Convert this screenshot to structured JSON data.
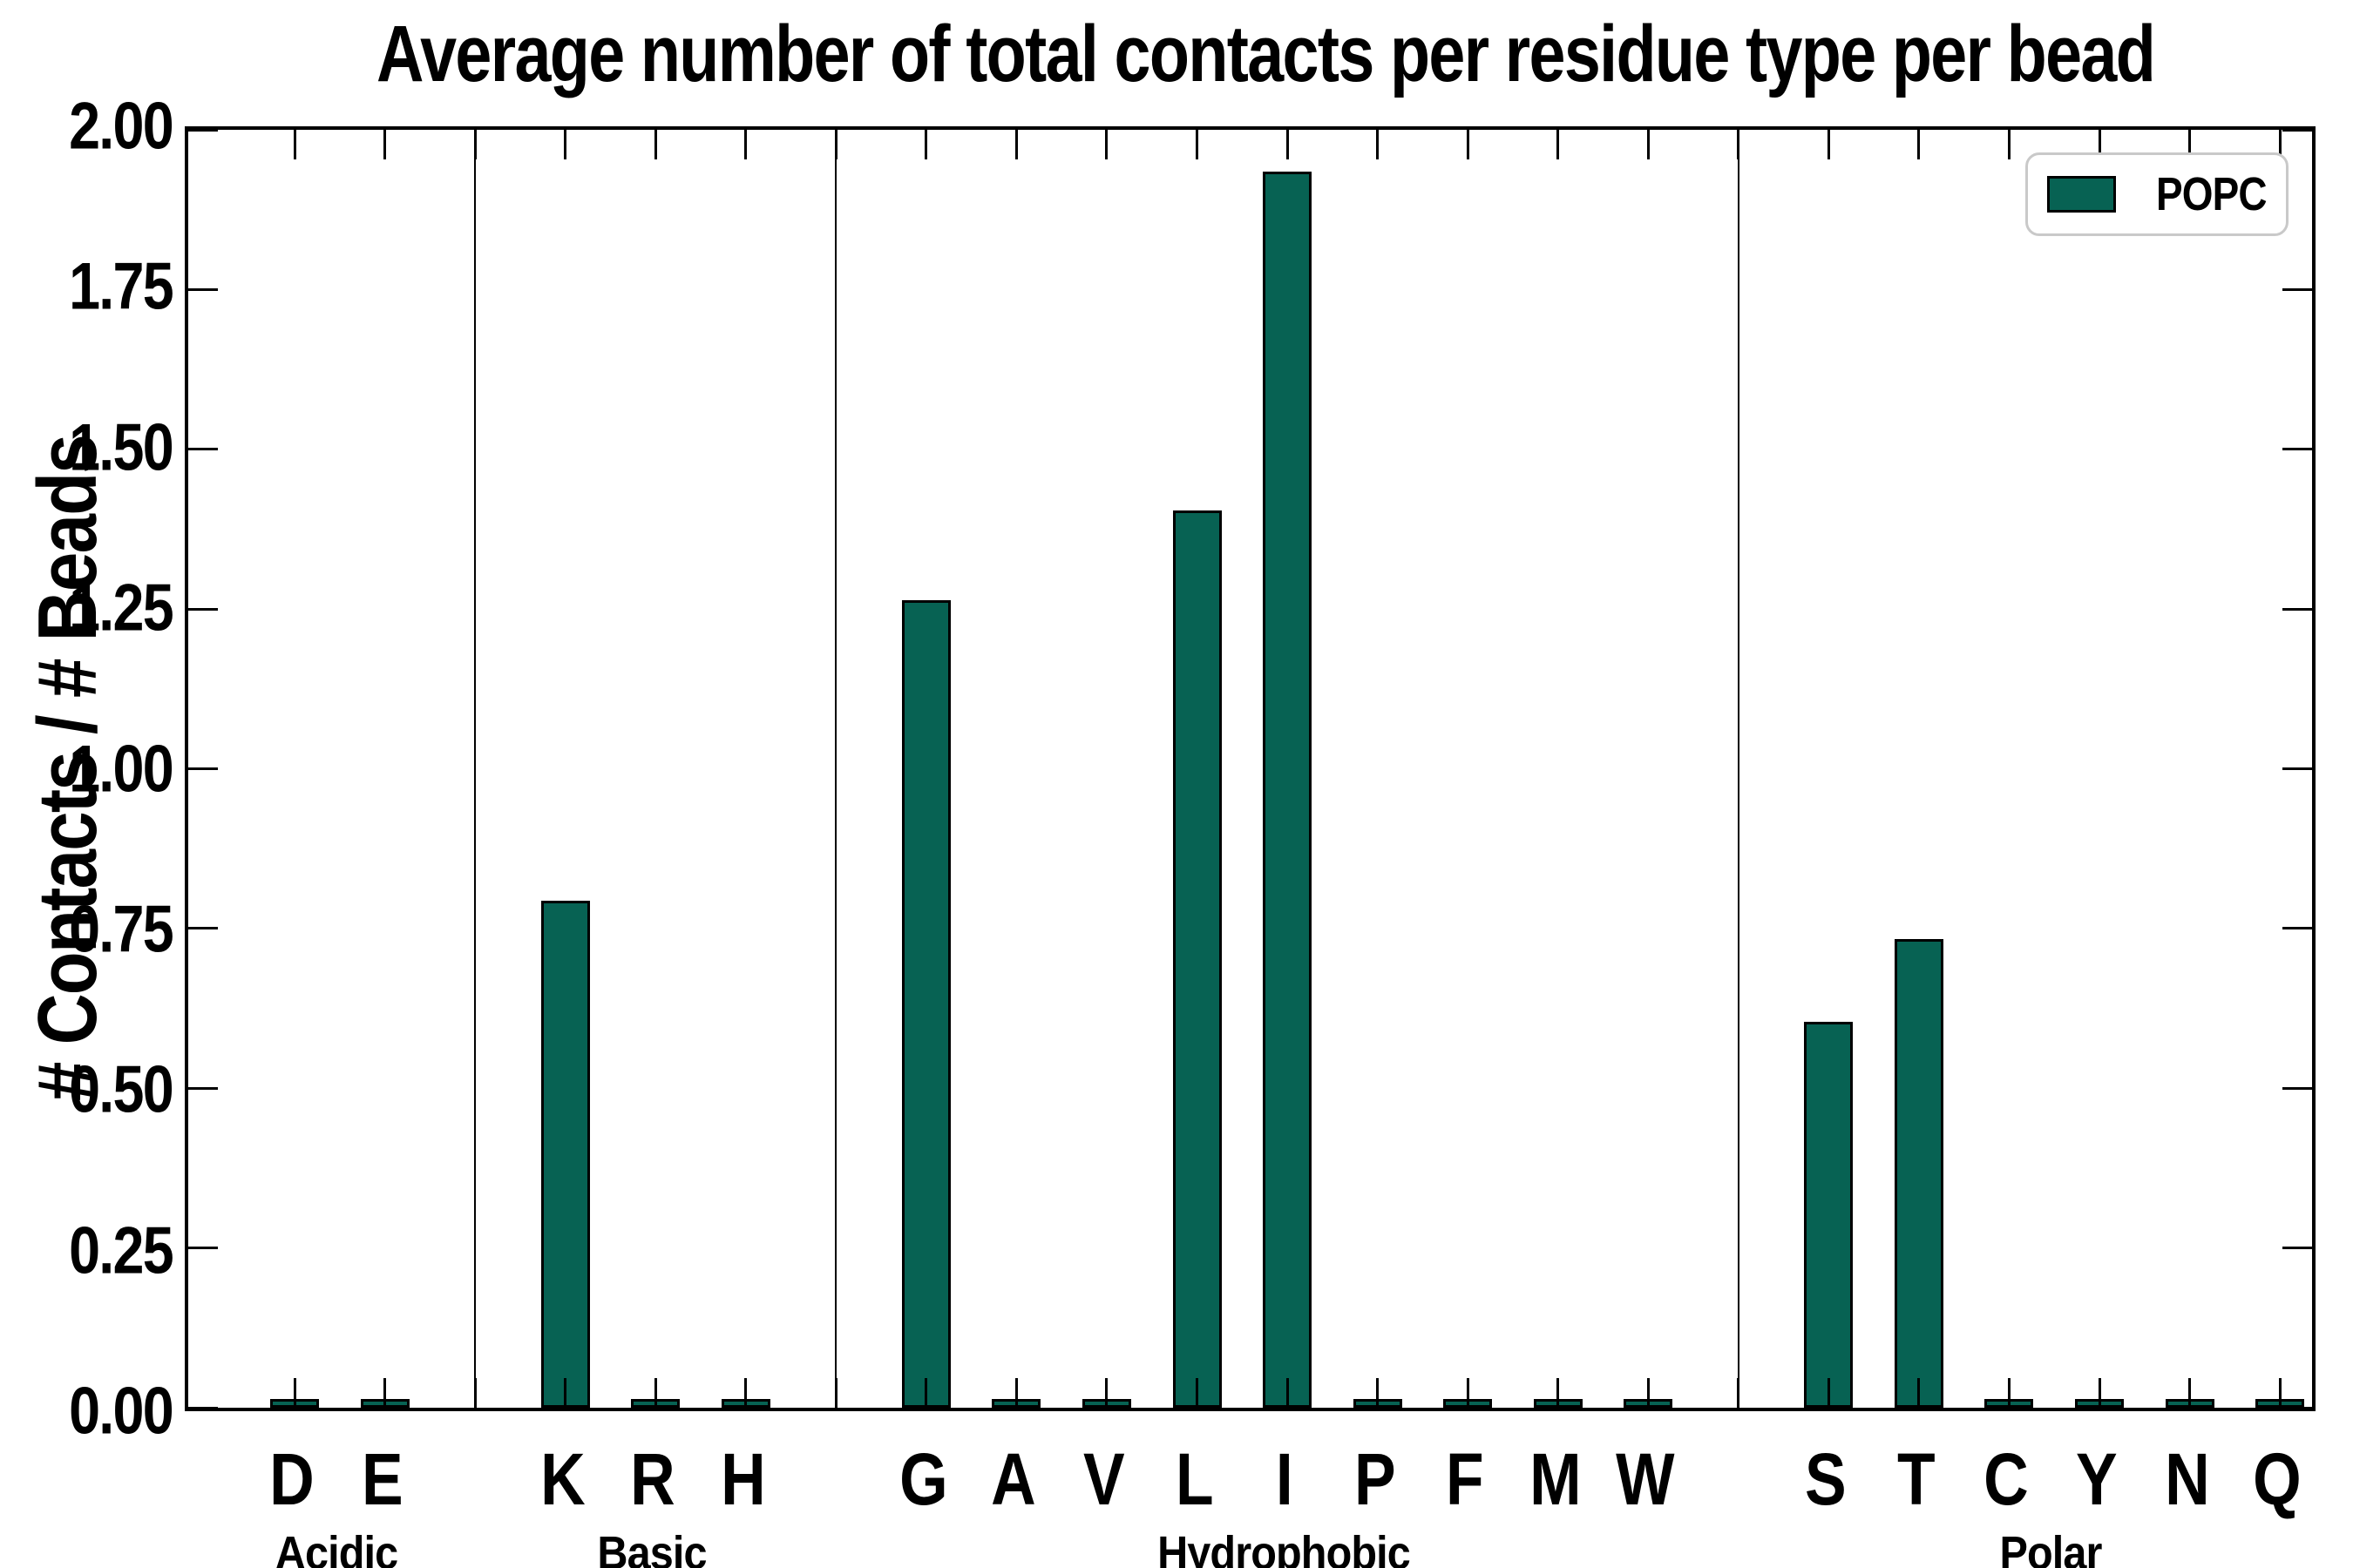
{
  "chart_data": {
    "type": "bar",
    "title": "Average number of total contacts per residue type per bead",
    "ylabel": "# Contacts / # Beads",
    "ylim": [
      0.0,
      2.0
    ],
    "ytick_step": 0.25,
    "ytick_labels": [
      "2.00",
      "1.75",
      "1.50",
      "1.25",
      "1.00",
      "0.75",
      "0.50",
      "0.25",
      "0.00"
    ],
    "grid": "off",
    "legend": {
      "label": "POPC",
      "position": "upper right"
    },
    "bar_color": "#076253",
    "bar_edge_color": "#000000",
    "groups": [
      {
        "label": "Acidic",
        "residues": [
          "D",
          "E"
        ]
      },
      {
        "label": "Basic",
        "residues": [
          "K",
          "R",
          "H"
        ]
      },
      {
        "label": "Hydrophobic",
        "residues": [
          "G",
          "A",
          "V",
          "L",
          "I",
          "P",
          "F",
          "M",
          "W"
        ]
      },
      {
        "label": "Polar",
        "residues": [
          "S",
          "T",
          "C",
          "Y",
          "N",
          "Q"
        ]
      }
    ],
    "values": {
      "D": 0.01,
      "E": 0.01,
      "K": 0.79,
      "R": 0.01,
      "H": 0.01,
      "G": 1.26,
      "A": 0.01,
      "V": 0.01,
      "L": 1.4,
      "I": 1.93,
      "P": 0.01,
      "F": 0.01,
      "M": 0.01,
      "W": 0.01,
      "S": 0.6,
      "T": 0.73,
      "C": 0.01,
      "Y": 0.01,
      "N": 0.01,
      "Q": 0.01
    }
  }
}
